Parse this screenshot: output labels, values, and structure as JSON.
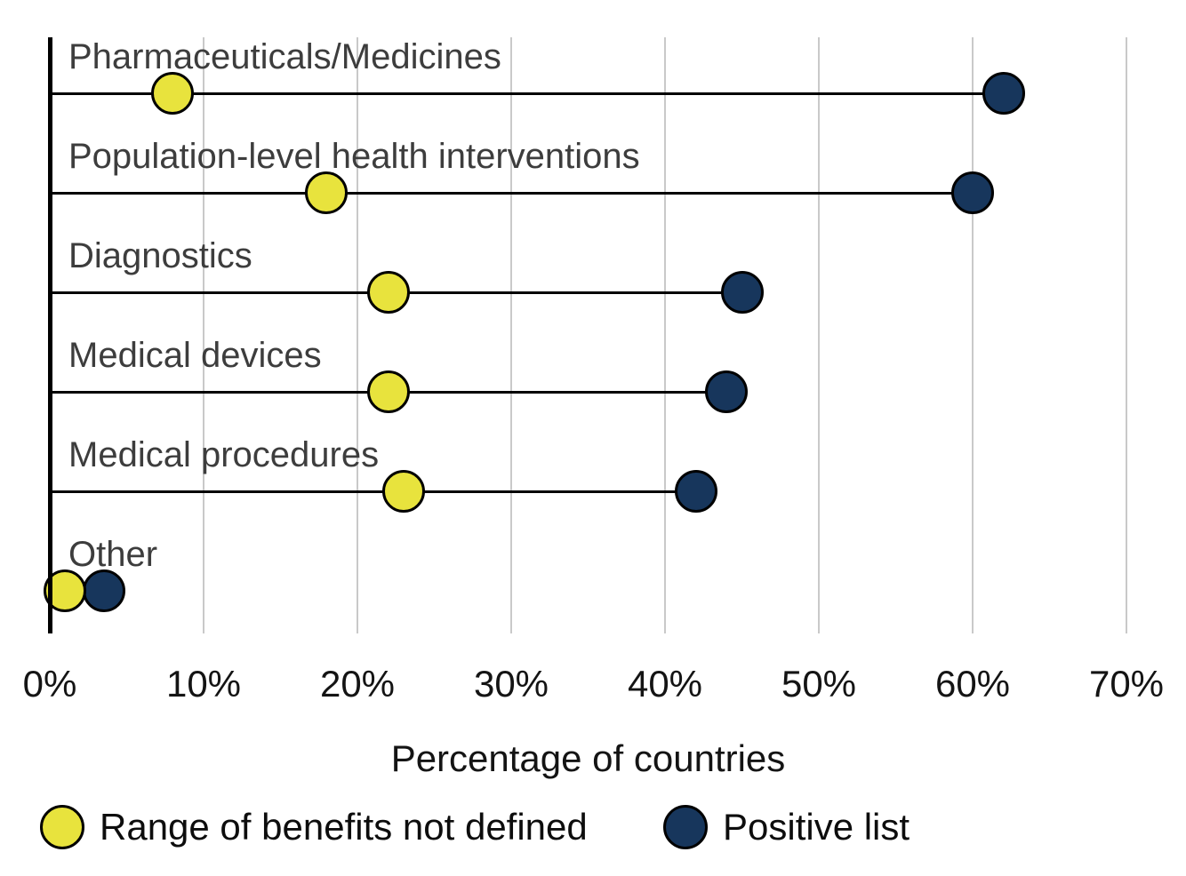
{
  "chart_data": {
    "type": "scatter",
    "variant": "dumbbell-lollipop",
    "title": "",
    "categories": [
      "Pharmaceuticals/Medicines",
      "Population-level health interventions",
      "Diagnostics",
      "Medical devices",
      "Medical procedures",
      "Other"
    ],
    "series": [
      {
        "name": "Range of benefits not defined",
        "color": "#e8e33d",
        "values": [
          8,
          18,
          22,
          22,
          23,
          1
        ]
      },
      {
        "name": "Positive list",
        "color": "#17365c",
        "values": [
          62,
          60,
          45,
          44,
          42,
          3.5
        ]
      }
    ],
    "xlabel": "Percentage of countries",
    "ylabel": "",
    "xlim": [
      0,
      70
    ],
    "x_tick_labels": [
      "0%",
      "10%",
      "20%",
      "30%",
      "40%",
      "50%",
      "60%",
      "70%"
    ],
    "grid": "vertical-only",
    "legend_position": "bottom"
  },
  "colors": {
    "yellow_marker": "#e8e33d",
    "navy_marker": "#17365c",
    "gridline": "#c9c9c9",
    "axis_line": "#000000",
    "category_label": "#3d3d3d",
    "tick_label": "#141414"
  }
}
